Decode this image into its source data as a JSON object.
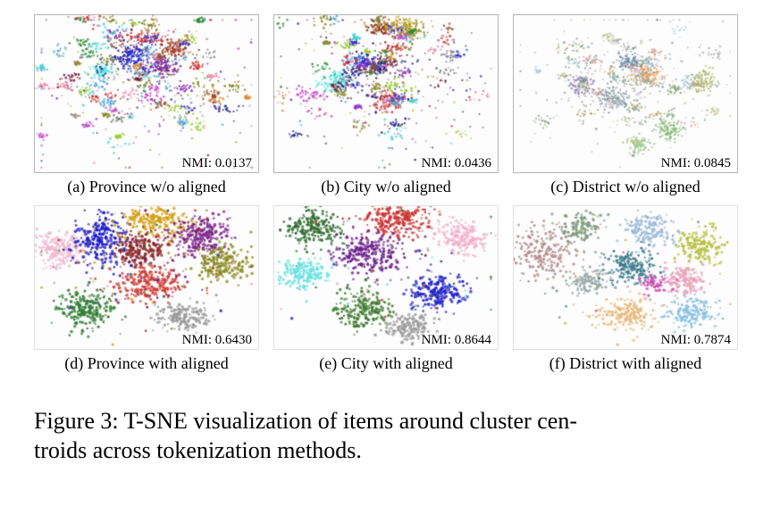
{
  "figure_caption": {
    "line1": "Figure 3: T-SNE visualization of items around cluster cen-",
    "line2": "troids across tokenization methods."
  },
  "panels": [
    {
      "id": "a",
      "caption": "(a) Province w/o aligned",
      "nmi": "NMI: 0.0137",
      "scatter": {
        "type": "noisy",
        "seed": 11,
        "point_radius": 1.15,
        "micro_clusters": 72,
        "points_min": 7,
        "points_max": 24,
        "spread_min": 0.008,
        "spread_max": 0.03,
        "center_bias": [
          0.5,
          0.4
        ],
        "center_sd": [
          0.21,
          0.2
        ],
        "noise_points": 240,
        "palette": [
          "#3333cc",
          "#cc3333",
          "#2e8a2e",
          "#8a2ecc",
          "#e08a2e",
          "#40d0d0",
          "#cc44cc",
          "#8a8a2e",
          "#8a4a2e",
          "#e890b0",
          "#888888",
          "#202090",
          "#55aadd",
          "#99cc33",
          "#7a2040"
        ],
        "clusters": [
          {
            "x": 0.44,
            "y": 0.26,
            "rx": 0.03,
            "ry": 0.035,
            "n": 130,
            "color": "#2020c8"
          },
          {
            "x": 0.57,
            "y": 0.33,
            "rx": 0.035,
            "ry": 0.03,
            "n": 110,
            "color": "#7a2a8a"
          },
          {
            "x": 0.3,
            "y": 0.36,
            "rx": 0.03,
            "ry": 0.025,
            "n": 80,
            "color": "#55e0e0"
          },
          {
            "x": 0.63,
            "y": 0.22,
            "rx": 0.03,
            "ry": 0.03,
            "n": 90,
            "color": "#a04028"
          },
          {
            "x": 0.5,
            "y": 0.14,
            "rx": 0.05,
            "ry": 0.03,
            "n": 90,
            "color": "#cc3333"
          }
        ]
      }
    },
    {
      "id": "b",
      "caption": "(b) City w/o aligned",
      "nmi": "NMI: 0.0436",
      "scatter": {
        "type": "noisy",
        "seed": 22,
        "point_radius": 1.15,
        "micro_clusters": 68,
        "points_min": 7,
        "points_max": 24,
        "spread_min": 0.008,
        "spread_max": 0.03,
        "center_bias": [
          0.48,
          0.38
        ],
        "center_sd": [
          0.2,
          0.2
        ],
        "noise_points": 230,
        "palette": [
          "#3333cc",
          "#cc3333",
          "#2e8a2e",
          "#8a2ecc",
          "#e08a2e",
          "#40d0d0",
          "#cc44cc",
          "#8a8a2e",
          "#8a4a2e",
          "#e890b0",
          "#888888",
          "#202090",
          "#55aadd",
          "#99cc33",
          "#7a2040"
        ],
        "clusters": [
          {
            "x": 0.6,
            "y": 0.1,
            "rx": 0.035,
            "ry": 0.03,
            "n": 110,
            "color": "#8a8a20"
          },
          {
            "x": 0.47,
            "y": 0.08,
            "rx": 0.03,
            "ry": 0.028,
            "n": 90,
            "color": "#8a3a20"
          },
          {
            "x": 0.55,
            "y": 0.06,
            "rx": 0.05,
            "ry": 0.03,
            "n": 60,
            "color": "#d0a020"
          },
          {
            "x": 0.27,
            "y": 0.42,
            "rx": 0.035,
            "ry": 0.03,
            "n": 110,
            "color": "#55e0e0"
          },
          {
            "x": 0.4,
            "y": 0.3,
            "rx": 0.04,
            "ry": 0.035,
            "n": 100,
            "color": "#2020c8"
          },
          {
            "x": 0.5,
            "y": 0.55,
            "rx": 0.04,
            "ry": 0.03,
            "n": 100,
            "color": "#cc3333"
          }
        ]
      }
    },
    {
      "id": "c",
      "caption": "(c) District w/o aligned",
      "nmi": "NMI: 0.0845",
      "scatter": {
        "type": "noisy",
        "seed": 33,
        "point_radius": 1.1,
        "micro_clusters": 50,
        "points_min": 8,
        "points_max": 22,
        "spread_min": 0.01,
        "spread_max": 0.028,
        "center_bias": [
          0.5,
          0.42
        ],
        "center_sd": [
          0.2,
          0.17
        ],
        "noise_points": 200,
        "palette": [
          "#b8a878",
          "#98a888",
          "#a8b8c8",
          "#c8a8a8",
          "#90a890",
          "#c0c890",
          "#7a8a9a",
          "#d0b890",
          "#d8c8e0",
          "#88b0a8",
          "#e8a8a8",
          "#a8c8e0",
          "#c8d8a8",
          "#b0b0b0"
        ],
        "clusters": [
          {
            "x": 0.6,
            "y": 0.38,
            "rx": 0.04,
            "ry": 0.035,
            "n": 130,
            "color": "#e8a060"
          },
          {
            "x": 0.44,
            "y": 0.52,
            "rx": 0.04,
            "ry": 0.035,
            "n": 120,
            "color": "#8a9aa0"
          },
          {
            "x": 0.84,
            "y": 0.42,
            "rx": 0.03,
            "ry": 0.04,
            "n": 100,
            "color": "#b0b860"
          },
          {
            "x": 0.7,
            "y": 0.72,
            "rx": 0.03,
            "ry": 0.04,
            "n": 110,
            "color": "#88b878"
          },
          {
            "x": 0.56,
            "y": 0.82,
            "rx": 0.025,
            "ry": 0.03,
            "n": 80,
            "color": "#a0c890"
          },
          {
            "x": 0.3,
            "y": 0.45,
            "rx": 0.035,
            "ry": 0.03,
            "n": 90,
            "color": "#9888b8"
          },
          {
            "x": 0.52,
            "y": 0.3,
            "rx": 0.035,
            "ry": 0.03,
            "n": 90,
            "color": "#6888a8"
          }
        ]
      }
    },
    {
      "id": "d",
      "caption": "(d) Province with aligned",
      "nmi": "NMI: 0.6430",
      "scatter": {
        "type": "clustered",
        "seed": 44,
        "point_radius": 1.5,
        "noise_points": 140,
        "clusters": [
          {
            "x": 0.11,
            "y": 0.3,
            "rx": 0.055,
            "ry": 0.06,
            "n": 200,
            "color": "#f0b8d0"
          },
          {
            "x": 0.3,
            "y": 0.22,
            "rx": 0.06,
            "ry": 0.09,
            "n": 230,
            "color": "#1818cc"
          },
          {
            "x": 0.54,
            "y": 0.11,
            "rx": 0.08,
            "ry": 0.055,
            "n": 210,
            "color": "#d4a017"
          },
          {
            "x": 0.74,
            "y": 0.2,
            "rx": 0.065,
            "ry": 0.07,
            "n": 230,
            "color": "#7a1f8a"
          },
          {
            "x": 0.47,
            "y": 0.3,
            "rx": 0.06,
            "ry": 0.06,
            "n": 200,
            "color": "#8a2525"
          },
          {
            "x": 0.84,
            "y": 0.4,
            "rx": 0.055,
            "ry": 0.07,
            "n": 210,
            "color": "#8a8a20"
          },
          {
            "x": 0.52,
            "y": 0.54,
            "rx": 0.075,
            "ry": 0.06,
            "n": 230,
            "color": "#cc3b33"
          },
          {
            "x": 0.22,
            "y": 0.72,
            "rx": 0.065,
            "ry": 0.07,
            "n": 210,
            "color": "#2e7d32"
          },
          {
            "x": 0.66,
            "y": 0.78,
            "rx": 0.06,
            "ry": 0.05,
            "n": 170,
            "color": "#9a9a9a"
          }
        ]
      }
    },
    {
      "id": "e",
      "caption": "(e) City with aligned",
      "nmi": "NMI: 0.8644",
      "scatter": {
        "type": "clustered",
        "seed": 55,
        "point_radius": 1.5,
        "noise_points": 70,
        "clusters": [
          {
            "x": 0.17,
            "y": 0.15,
            "rx": 0.06,
            "ry": 0.07,
            "n": 210,
            "color": "#2e6b2e"
          },
          {
            "x": 0.54,
            "y": 0.1,
            "rx": 0.075,
            "ry": 0.055,
            "n": 220,
            "color": "#cc3333"
          },
          {
            "x": 0.84,
            "y": 0.22,
            "rx": 0.055,
            "ry": 0.065,
            "n": 180,
            "color": "#f0b0c8"
          },
          {
            "x": 0.42,
            "y": 0.33,
            "rx": 0.075,
            "ry": 0.07,
            "n": 240,
            "color": "#6a1f8a"
          },
          {
            "x": 0.12,
            "y": 0.47,
            "rx": 0.065,
            "ry": 0.05,
            "n": 170,
            "color": "#66e0e0"
          },
          {
            "x": 0.4,
            "y": 0.72,
            "rx": 0.065,
            "ry": 0.065,
            "n": 200,
            "color": "#3e7a2e"
          },
          {
            "x": 0.73,
            "y": 0.6,
            "rx": 0.065,
            "ry": 0.06,
            "n": 210,
            "color": "#2222cc"
          },
          {
            "x": 0.6,
            "y": 0.85,
            "rx": 0.055,
            "ry": 0.045,
            "n": 150,
            "color": "#9a9a9a"
          }
        ]
      }
    },
    {
      "id": "f",
      "caption": "(f) District with aligned",
      "nmi": "NMI: 0.7874",
      "scatter": {
        "type": "clustered",
        "seed": 66,
        "point_radius": 1.4,
        "noise_points": 50,
        "clusters": [
          {
            "x": 0.14,
            "y": 0.32,
            "rx": 0.07,
            "ry": 0.08,
            "n": 210,
            "color": "#b48888"
          },
          {
            "x": 0.3,
            "y": 0.14,
            "rx": 0.05,
            "ry": 0.05,
            "n": 130,
            "color": "#7a9a7a"
          },
          {
            "x": 0.6,
            "y": 0.16,
            "rx": 0.06,
            "ry": 0.055,
            "n": 170,
            "color": "#9ab8d8"
          },
          {
            "x": 0.84,
            "y": 0.28,
            "rx": 0.055,
            "ry": 0.065,
            "n": 190,
            "color": "#b8c040"
          },
          {
            "x": 0.52,
            "y": 0.42,
            "rx": 0.06,
            "ry": 0.06,
            "n": 190,
            "color": "#3a7a8a"
          },
          {
            "x": 0.76,
            "y": 0.52,
            "rx": 0.05,
            "ry": 0.055,
            "n": 160,
            "color": "#e8a0b8"
          },
          {
            "x": 0.63,
            "y": 0.55,
            "rx": 0.03,
            "ry": 0.03,
            "n": 60,
            "color": "#c84ab0"
          },
          {
            "x": 0.5,
            "y": 0.76,
            "rx": 0.065,
            "ry": 0.055,
            "n": 190,
            "color": "#e8b878"
          },
          {
            "x": 0.8,
            "y": 0.74,
            "rx": 0.055,
            "ry": 0.05,
            "n": 160,
            "color": "#88c0e0"
          },
          {
            "x": 0.33,
            "y": 0.52,
            "rx": 0.045,
            "ry": 0.045,
            "n": 120,
            "color": "#9aa8a8"
          }
        ]
      }
    }
  ]
}
